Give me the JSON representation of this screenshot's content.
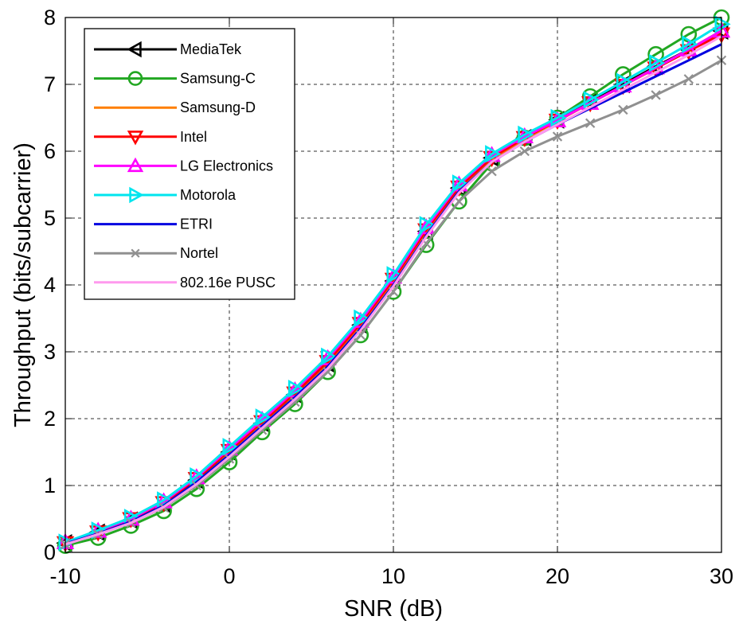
{
  "chart_data": {
    "type": "line",
    "title": "",
    "xlabel": "SNR (dB)",
    "ylabel": "Throughput (bits/subcarrier)",
    "xlim": [
      -10,
      30
    ],
    "ylim": [
      0,
      8
    ],
    "xticks": [
      -10,
      0,
      10,
      20,
      30
    ],
    "yticks": [
      0,
      1,
      2,
      3,
      4,
      5,
      6,
      7,
      8
    ],
    "grid": true,
    "legend_position": "top-left",
    "series": [
      {
        "name": "MediaTek",
        "color": "#000000",
        "marker": "triangle-left",
        "x": [
          -10,
          -8,
          -6,
          -4,
          -2,
          0,
          2,
          4,
          6,
          8,
          10,
          12,
          14,
          16,
          18,
          20,
          22,
          24,
          26,
          28,
          30
        ],
        "y": [
          0.14,
          0.3,
          0.48,
          0.72,
          1.08,
          1.5,
          1.93,
          2.36,
          2.82,
          3.4,
          4.06,
          4.8,
          5.45,
          5.9,
          6.2,
          6.47,
          6.75,
          7.0,
          7.27,
          7.52,
          7.8
        ]
      },
      {
        "name": "Samsung-C",
        "color": "#22a722",
        "marker": "circle",
        "x": [
          -10,
          -8,
          -6,
          -4,
          -2,
          0,
          2,
          4,
          6,
          8,
          10,
          12,
          14,
          16,
          18,
          20,
          22,
          24,
          26,
          28,
          30
        ],
        "y": [
          0.1,
          0.22,
          0.4,
          0.62,
          0.95,
          1.35,
          1.8,
          2.22,
          2.7,
          3.25,
          3.9,
          4.6,
          5.25,
          5.82,
          6.2,
          6.5,
          6.82,
          7.15,
          7.45,
          7.75,
          8.0
        ]
      },
      {
        "name": "Samsung-D",
        "color": "#ff7f00",
        "marker": "none",
        "x": [
          -10,
          -8,
          -6,
          -4,
          -2,
          0,
          2,
          4,
          6,
          8,
          10,
          12,
          14,
          16,
          18,
          20,
          22,
          24,
          26,
          28,
          30
        ],
        "y": [
          0.13,
          0.28,
          0.46,
          0.7,
          1.05,
          1.47,
          1.9,
          2.33,
          2.8,
          3.38,
          4.03,
          4.76,
          5.42,
          5.88,
          6.18,
          6.45,
          6.72,
          6.98,
          7.25,
          7.5,
          7.75
        ]
      },
      {
        "name": "Intel",
        "color": "#ff0000",
        "marker": "triangle-down",
        "x": [
          -10,
          -8,
          -6,
          -4,
          -2,
          0,
          2,
          4,
          6,
          8,
          10,
          12,
          14,
          16,
          18,
          20,
          22,
          24,
          26,
          28,
          30
        ],
        "y": [
          0.14,
          0.3,
          0.5,
          0.74,
          1.1,
          1.52,
          1.95,
          2.38,
          2.85,
          3.42,
          4.08,
          4.82,
          5.46,
          5.9,
          6.2,
          6.46,
          6.72,
          6.98,
          7.24,
          7.5,
          7.75
        ]
      },
      {
        "name": "LG Electronics",
        "color": "#ff00ff",
        "marker": "triangle-up",
        "x": [
          -10,
          -8,
          -6,
          -4,
          -2,
          0,
          2,
          4,
          6,
          8,
          10,
          12,
          14,
          16,
          18,
          20,
          22,
          24,
          26,
          28,
          30
        ],
        "y": [
          0.15,
          0.32,
          0.5,
          0.76,
          1.12,
          1.55,
          1.98,
          2.42,
          2.9,
          3.46,
          4.12,
          4.86,
          5.5,
          5.94,
          6.22,
          6.46,
          6.72,
          6.98,
          7.25,
          7.52,
          7.8
        ]
      },
      {
        "name": "Motorola",
        "color": "#00e5ee",
        "marker": "triangle-right",
        "x": [
          -10,
          -8,
          -6,
          -4,
          -2,
          0,
          2,
          4,
          6,
          8,
          10,
          12,
          14,
          16,
          18,
          20,
          22,
          24,
          26,
          28,
          30
        ],
        "y": [
          0.15,
          0.33,
          0.52,
          0.78,
          1.14,
          1.58,
          2.02,
          2.45,
          2.93,
          3.5,
          4.15,
          4.9,
          5.52,
          5.96,
          6.25,
          6.5,
          6.77,
          7.04,
          7.32,
          7.6,
          7.9
        ]
      },
      {
        "name": "ETRI",
        "color": "#0000e0",
        "marker": "none",
        "x": [
          -10,
          -8,
          -6,
          -4,
          -2,
          0,
          2,
          4,
          6,
          8,
          10,
          12,
          14,
          16,
          18,
          20,
          22,
          24,
          26,
          28,
          30
        ],
        "y": [
          0.13,
          0.28,
          0.46,
          0.7,
          1.05,
          1.46,
          1.89,
          2.32,
          2.78,
          3.35,
          4.0,
          4.74,
          5.4,
          5.84,
          6.14,
          6.4,
          6.64,
          6.88,
          7.12,
          7.36,
          7.6
        ]
      },
      {
        "name": "Nortel",
        "color": "#909090",
        "marker": "x",
        "x": [
          -10,
          -8,
          -6,
          -4,
          -2,
          0,
          2,
          4,
          6,
          8,
          10,
          12,
          14,
          16,
          18,
          20,
          22,
          24,
          26,
          28,
          30
        ],
        "y": [
          0.12,
          0.27,
          0.44,
          0.67,
          1.0,
          1.4,
          1.83,
          2.25,
          2.7,
          3.25,
          3.9,
          4.62,
          5.25,
          5.7,
          6.0,
          6.22,
          6.42,
          6.62,
          6.84,
          7.08,
          7.36
        ]
      },
      {
        "name": "802.16e PUSC",
        "color": "#ff99ee",
        "marker": "none",
        "x": [
          -10,
          -8,
          -6,
          -4,
          -2,
          0,
          2,
          4,
          6,
          8,
          10,
          12,
          14,
          16,
          18,
          20,
          22,
          24,
          26,
          28,
          30
        ],
        "y": [
          0.12,
          0.27,
          0.44,
          0.68,
          1.02,
          1.43,
          1.86,
          2.29,
          2.75,
          3.32,
          3.98,
          4.72,
          5.38,
          5.84,
          6.14,
          6.4,
          6.66,
          6.92,
          7.18,
          7.44,
          7.72
        ]
      }
    ]
  }
}
